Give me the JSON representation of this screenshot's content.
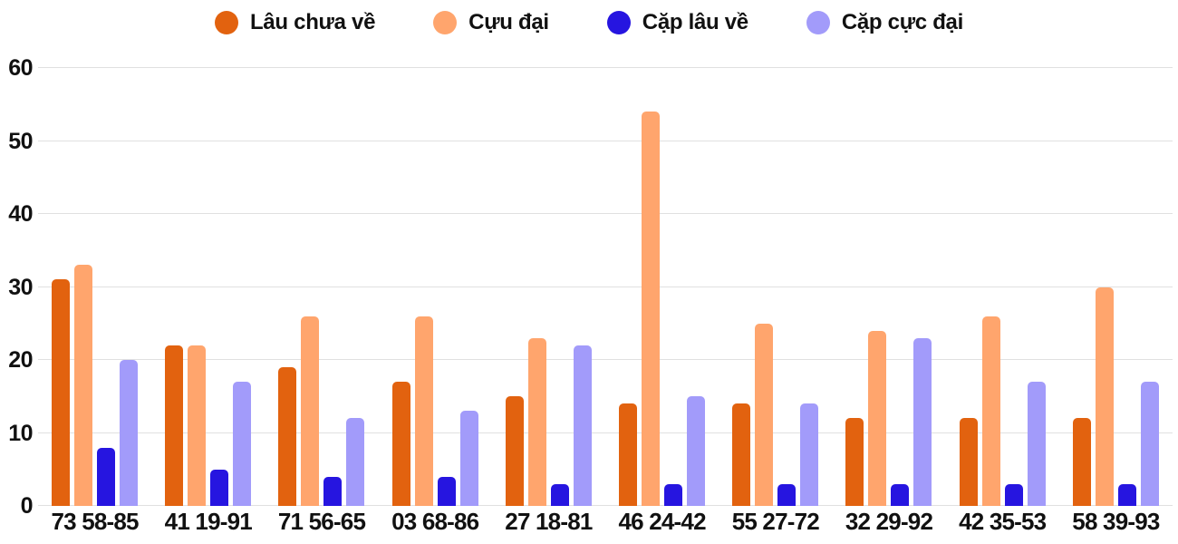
{
  "chart_data": {
    "type": "bar",
    "title": "",
    "xlabel": "",
    "ylabel": "",
    "categories": [
      "73 58-85",
      "41 19-91",
      "71 56-65",
      "03 68-86",
      "27 18-81",
      "46 24-42",
      "55 27-72",
      "32 29-92",
      "42 35-53",
      "58 39-93"
    ],
    "series": [
      {
        "name": "Lâu chưa về",
        "color": "#e2620f",
        "values": [
          31,
          22,
          19,
          17,
          15,
          14,
          14,
          12,
          12,
          12
        ]
      },
      {
        "name": "Cựu đại",
        "color": "#ffa56d",
        "values": [
          33,
          22,
          26,
          26,
          23,
          54,
          25,
          24,
          26,
          30
        ]
      },
      {
        "name": "Cặp lâu về",
        "color": "#2615e0",
        "values": [
          8,
          5,
          4,
          4,
          3,
          3,
          3,
          3,
          3,
          3
        ]
      },
      {
        "name": "Cặp cực đại",
        "color": "#a29bfa",
        "values": [
          20,
          17,
          12,
          13,
          22,
          15,
          14,
          23,
          17,
          17
        ]
      }
    ],
    "ylim": [
      0,
      60
    ],
    "yticks": [
      0,
      10,
      20,
      30,
      40,
      50,
      60
    ],
    "grid": true,
    "legend_position": "top"
  },
  "colors": {
    "grid": "#e0e0e0",
    "axis_text": "#111111",
    "background": "#ffffff"
  }
}
